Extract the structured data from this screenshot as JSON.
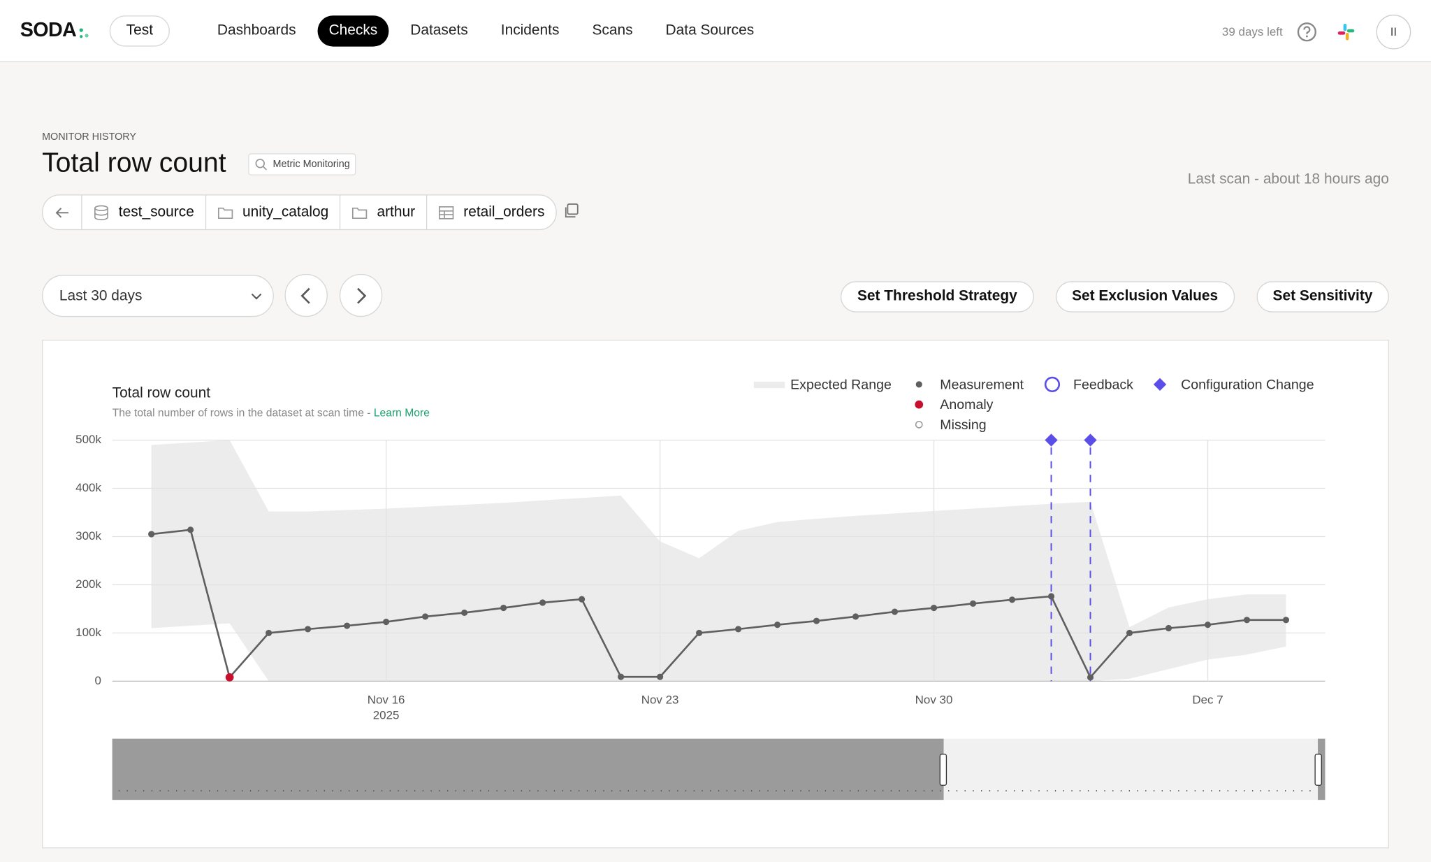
{
  "nav": {
    "logo": "SODA",
    "workspace": "Test",
    "items": [
      "Dashboards",
      "Checks",
      "Datasets",
      "Incidents",
      "Scans",
      "Data Sources"
    ],
    "active": 1,
    "trial": "39 days left",
    "avatar": "II"
  },
  "header": {
    "eyebrow": "MONITOR HISTORY",
    "title": "Total row count",
    "badge": "Metric Monitoring",
    "breadcrumb": [
      "test_source",
      "unity_catalog",
      "arthur",
      "retail_orders"
    ],
    "last_scan": "Last scan - about 18 hours ago"
  },
  "toolbar": {
    "range": "Last 30 days",
    "actions": [
      "Set Threshold Strategy",
      "Set Exclusion Values",
      "Set Sensitivity"
    ]
  },
  "chart_data": {
    "type": "line",
    "title": "Total row count",
    "subtitle": "The total number of rows in the dataset at scan time - ",
    "link": "Learn More",
    "x": [
      "2025-11-10",
      "2025-11-11",
      "2025-11-12",
      "2025-11-13",
      "2025-11-14",
      "2025-11-15",
      "2025-11-16",
      "2025-11-17",
      "2025-11-18",
      "2025-11-19",
      "2025-11-20",
      "2025-11-21",
      "2025-11-22",
      "2025-11-23",
      "2025-11-24",
      "2025-11-25",
      "2025-11-26",
      "2025-11-27",
      "2025-11-28",
      "2025-11-29",
      "2025-11-30",
      "2025-12-01",
      "2025-12-02",
      "2025-12-03",
      "2025-12-04",
      "2025-12-05",
      "2025-12-06",
      "2025-12-07",
      "2025-12-08",
      "2025-12-09"
    ],
    "series": [
      {
        "name": "Measurement",
        "color": "#5f5f5f",
        "values": [
          305000,
          314000,
          8000,
          100000,
          108000,
          115000,
          123000,
          134000,
          142000,
          152000,
          163000,
          170000,
          9000,
          9000,
          100000,
          108000,
          117000,
          125000,
          134000,
          144000,
          152000,
          161000,
          169000,
          176000,
          8000,
          100000,
          110000,
          117000,
          127000,
          127000
        ]
      },
      {
        "name": "Anomaly",
        "color": "#c8102e",
        "values": [
          null,
          null,
          8000,
          null,
          null,
          null,
          null,
          null,
          null,
          null,
          null,
          null,
          null,
          null,
          null,
          null,
          null,
          null,
          null,
          null,
          null,
          null,
          null,
          null,
          null,
          null,
          null,
          null,
          null,
          null
        ]
      }
    ],
    "band": {
      "name": "Expected Range",
      "color": "#ececec",
      "upper": [
        490000,
        495000,
        500000,
        352000,
        352000,
        355000,
        358000,
        362000,
        366000,
        370000,
        375000,
        380000,
        385000,
        290000,
        255000,
        312000,
        330000,
        337000,
        343000,
        348000,
        353000,
        358000,
        363000,
        368000,
        372000,
        112000,
        153000,
        170000,
        180000,
        180000
      ],
      "lower": [
        110000,
        115000,
        120000,
        0,
        0,
        0,
        0,
        0,
        0,
        0,
        0,
        0,
        0,
        0,
        0,
        0,
        0,
        0,
        0,
        0,
        0,
        0,
        0,
        0,
        0,
        5000,
        25000,
        45000,
        55000,
        72000
      ]
    },
    "markers": [
      {
        "name": "Missing",
        "color": "#9a9a9a"
      },
      {
        "name": "Feedback",
        "color": "#5b4ee8"
      },
      {
        "name": "Configuration Change",
        "color": "#5b4ee8",
        "x": [
          "2025-12-03",
          "2025-12-04"
        ]
      }
    ],
    "xlim": [
      "2025-11-09",
      "2025-12-10"
    ],
    "xticks": [
      {
        "value": "2025-11-16",
        "label": "Nov 16",
        "sublabel": "2025"
      },
      {
        "value": "2025-11-23",
        "label": "Nov 23"
      },
      {
        "value": "2025-11-30",
        "label": "Nov 30"
      },
      {
        "value": "2025-12-07",
        "label": "Dec 7"
      }
    ],
    "ylim": [
      0,
      500000
    ],
    "yticks": [
      0,
      {
        "value": 100000,
        "label": "100k"
      },
      {
        "value": 200000,
        "label": "200k"
      },
      {
        "value": 300000,
        "label": "300k"
      },
      {
        "value": 400000,
        "label": "400k"
      },
      {
        "value": 500000,
        "label": "500k"
      }
    ],
    "grid": true
  }
}
